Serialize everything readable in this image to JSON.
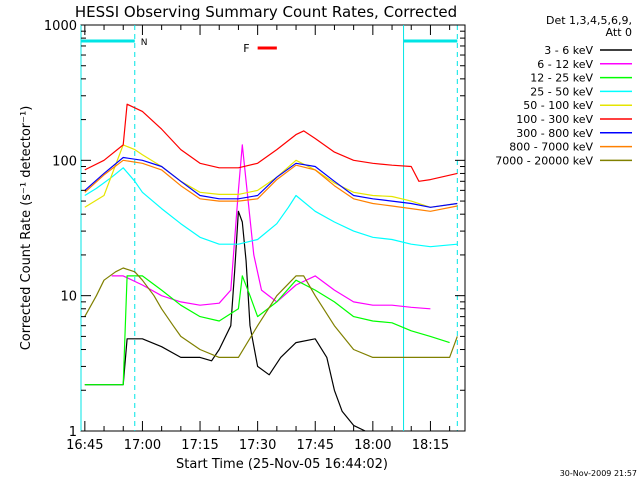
{
  "chart_data": {
    "type": "line",
    "title": "HESSI Observing Summary Count Rates, Corrected",
    "xlabel": "Start Time (25-Nov-05 16:44:02)",
    "ylabel": "Corrected Count Rate (s⁻¹ detector⁻¹)",
    "yscale": "log",
    "ylim": [
      1,
      1000
    ],
    "xlim": [
      "16:44",
      "18:24"
    ],
    "xticks": [
      "16:45",
      "17:00",
      "17:15",
      "17:30",
      "17:45",
      "18:00",
      "18:15"
    ],
    "yticks": [
      "1",
      "10",
      "100",
      "1000"
    ],
    "legend_header": [
      "Det 1,3,4,5,6,9,",
      "Att 0"
    ],
    "legend_position": "right",
    "footer": "30-Nov-2009 21:57",
    "annotations": {
      "night": {
        "label": "N",
        "intervals": [
          [
            "16:44",
            "16:58"
          ],
          [
            "18:08",
            "18:22"
          ]
        ],
        "color": "#00e5e5"
      },
      "flare": {
        "label": "F",
        "interval": [
          "17:30",
          "17:35"
        ],
        "color": "#ff0000"
      },
      "saa_markers": [
        "16:58",
        "18:08",
        "18:22"
      ]
    },
    "series": [
      {
        "name": "3 - 6 keV",
        "color": "#000000",
        "x": [
          "16:45",
          "16:47",
          "16:50",
          "16:55",
          "16:56",
          "17:00",
          "17:05",
          "17:10",
          "17:15",
          "17:18",
          "17:20",
          "17:23",
          "17:24",
          "17:25",
          "17:26",
          "17:27",
          "17:28",
          "17:30",
          "17:33",
          "17:36",
          "17:40",
          "17:45",
          "17:48",
          "17:50",
          "17:52",
          "17:55",
          "17:58"
        ],
        "y": [
          2.2,
          2.2,
          2.2,
          2.2,
          4.8,
          4.8,
          4.2,
          3.5,
          3.5,
          3.3,
          4.0,
          6.0,
          15,
          42,
          35,
          18,
          6,
          3.0,
          2.6,
          3.5,
          4.5,
          4.8,
          3.5,
          2.0,
          1.4,
          1.1,
          1.0
        ]
      },
      {
        "name": "6 - 12 keV",
        "color": "#ff00ff",
        "x": [
          "16:52",
          "16:55",
          "17:00",
          "17:05",
          "17:10",
          "17:15",
          "17:20",
          "17:23",
          "17:25",
          "17:26",
          "17:27",
          "17:29",
          "17:31",
          "17:35",
          "17:40",
          "17:45",
          "17:50",
          "17:55",
          "18:00",
          "18:05",
          "18:10",
          "18:15"
        ],
        "y": [
          14,
          14,
          12,
          10,
          9,
          8.5,
          8.8,
          11,
          60,
          130,
          70,
          20,
          11,
          9,
          12,
          14,
          11,
          9,
          8.5,
          8.5,
          8.2,
          8.0
        ]
      },
      {
        "name": "12 - 25 keV",
        "color": "#00ff00",
        "x": [
          "16:45",
          "16:50",
          "16:55",
          "16:56",
          "17:00",
          "17:05",
          "17:10",
          "17:15",
          "17:20",
          "17:25",
          "17:26",
          "17:28",
          "17:30",
          "17:35",
          "17:40",
          "17:45",
          "17:50",
          "17:55",
          "18:00",
          "18:05",
          "18:10",
          "18:15",
          "18:20"
        ],
        "y": [
          2.2,
          2.2,
          2.2,
          14,
          14,
          11,
          8.5,
          7.0,
          6.5,
          8,
          14,
          10,
          7,
          9,
          13,
          11,
          9,
          7,
          6.5,
          6.3,
          5.5,
          5.0,
          4.5
        ]
      },
      {
        "name": "25 - 50 keV",
        "color": "#00ffff",
        "x": [
          "16:45",
          "16:48",
          "16:52",
          "16:55",
          "16:58",
          "17:00",
          "17:05",
          "17:10",
          "17:15",
          "17:20",
          "17:25",
          "17:30",
          "17:35",
          "17:38",
          "17:40",
          "17:45",
          "17:50",
          "17:55",
          "18:00",
          "18:05",
          "18:10",
          "18:15",
          "18:22"
        ],
        "y": [
          55,
          62,
          75,
          88,
          70,
          58,
          44,
          34,
          27,
          24,
          24,
          26,
          34,
          45,
          55,
          42,
          35,
          30,
          27,
          26,
          24,
          23,
          24
        ]
      },
      {
        "name": "50 - 100 keV",
        "color": "#e5e500",
        "x": [
          "16:45",
          "16:50",
          "16:55",
          "16:58",
          "17:00",
          "17:05",
          "17:10",
          "17:15",
          "17:20",
          "17:25",
          "17:30",
          "17:35",
          "17:40",
          "17:45",
          "17:50",
          "17:55",
          "18:00",
          "18:05",
          "18:10",
          "18:15",
          "18:22"
        ],
        "y": [
          45,
          55,
          130,
          120,
          110,
          90,
          70,
          58,
          56,
          56,
          60,
          75,
          100,
          85,
          68,
          58,
          55,
          54,
          50,
          45,
          48
        ]
      },
      {
        "name": "100 - 300 keV",
        "color": "#ff0000",
        "x": [
          "16:45",
          "16:50",
          "16:55",
          "16:56",
          "17:00",
          "17:05",
          "17:10",
          "17:15",
          "17:20",
          "17:25",
          "17:30",
          "17:35",
          "17:40",
          "17:42",
          "17:45",
          "17:50",
          "17:55",
          "18:00",
          "18:05",
          "18:10",
          "18:12",
          "18:15",
          "18:22"
        ],
        "y": [
          85,
          100,
          130,
          260,
          230,
          170,
          120,
          95,
          88,
          88,
          95,
          120,
          155,
          165,
          145,
          115,
          100,
          95,
          92,
          90,
          70,
          72,
          80
        ]
      },
      {
        "name": "300 - 800 keV",
        "color": "#0000ff",
        "x": [
          "16:45",
          "16:50",
          "16:55",
          "17:00",
          "17:05",
          "17:10",
          "17:15",
          "17:20",
          "17:25",
          "17:30",
          "17:35",
          "17:40",
          "17:45",
          "17:50",
          "17:55",
          "18:00",
          "18:05",
          "18:10",
          "18:15",
          "18:22"
        ],
        "y": [
          60,
          80,
          105,
          100,
          90,
          70,
          55,
          52,
          52,
          55,
          75,
          95,
          90,
          70,
          55,
          52,
          50,
          48,
          45,
          48
        ]
      },
      {
        "name": "800 - 7000 keV",
        "color": "#ff8000",
        "x": [
          "16:45",
          "16:50",
          "16:55",
          "17:00",
          "17:05",
          "17:10",
          "17:15",
          "17:20",
          "17:25",
          "17:30",
          "17:35",
          "17:40",
          "17:45",
          "17:50",
          "17:55",
          "18:00",
          "18:05",
          "18:10",
          "18:15",
          "18:22"
        ],
        "y": [
          58,
          78,
          100,
          95,
          85,
          65,
          52,
          50,
          50,
          52,
          72,
          92,
          85,
          65,
          52,
          48,
          46,
          44,
          42,
          46
        ]
      },
      {
        "name": "7000 - 20000 keV",
        "color": "#808000",
        "x": [
          "16:45",
          "16:48",
          "16:50",
          "16:53",
          "16:55",
          "16:58",
          "17:00",
          "17:03",
          "17:05",
          "17:08",
          "17:10",
          "17:15",
          "17:20",
          "17:25",
          "17:30",
          "17:35",
          "17:40",
          "17:42",
          "17:45",
          "17:50",
          "17:55",
          "18:00",
          "18:05",
          "18:10",
          "18:15",
          "18:20",
          "18:22"
        ],
        "y": [
          7,
          10,
          13,
          15,
          16,
          15,
          13,
          10,
          8,
          6,
          5,
          4,
          3.5,
          3.5,
          6,
          10,
          14,
          14,
          10,
          6,
          4,
          3.5,
          3.5,
          3.5,
          3.5,
          3.5,
          5
        ]
      }
    ]
  }
}
